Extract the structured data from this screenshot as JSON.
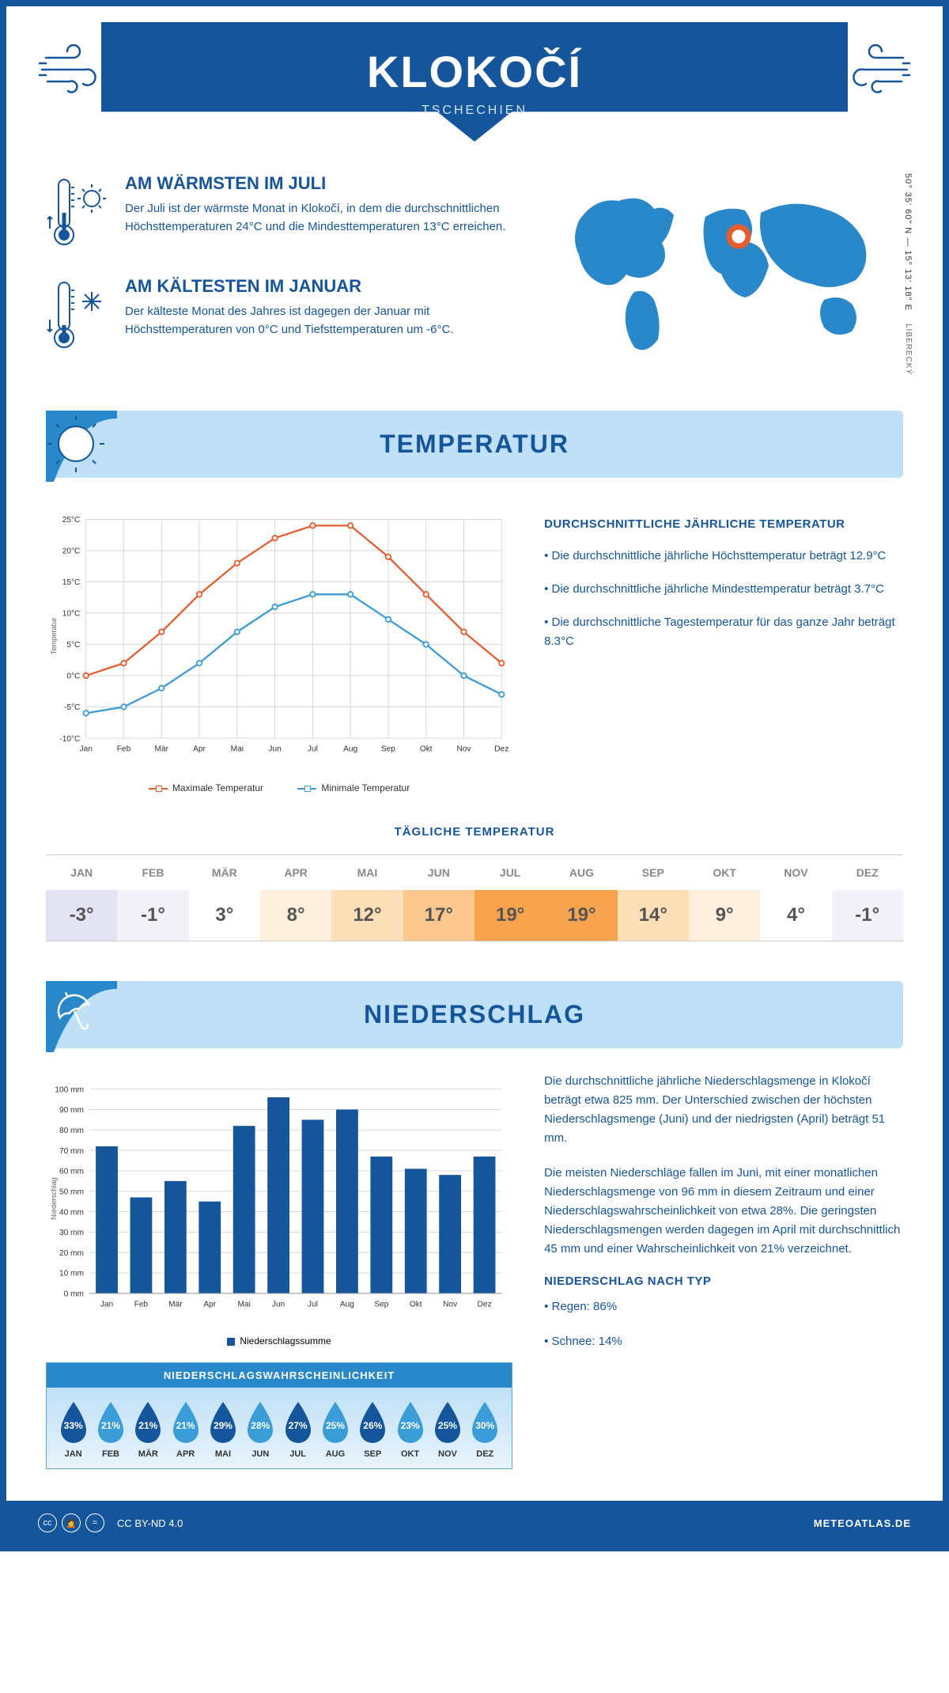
{
  "header": {
    "title": "KLOKOČÍ",
    "country": "TSCHECHIEN"
  },
  "coords": "50° 35' 60\" N — 15° 13' 18\" E",
  "region_label": "LIBERECKÝ",
  "facts": {
    "warm": {
      "title": "AM WÄRMSTEN IM JULI",
      "text": "Der Juli ist der wärmste Monat in Klokočí, in dem die durchschnittlichen Höchsttemperaturen 24°C und die Mindesttemperaturen 13°C erreichen."
    },
    "cold": {
      "title": "AM KÄLTESTEN IM JANUAR",
      "text": "Der kälteste Monat des Jahres ist dagegen der Januar mit Höchsttemperaturen von 0°C und Tiefsttemperaturen um -6°C."
    }
  },
  "temperature": {
    "section_title": "TEMPERATUR",
    "sidebar_title": "DURCHSCHNITTLICHE JÄHRLICHE TEMPERATUR",
    "bullets": [
      "• Die durchschnittliche jährliche Höchsttemperatur beträgt 12.9°C",
      "• Die durchschnittliche jährliche Mindesttemperatur beträgt 3.7°C",
      "• Die durchschnittliche Tagestemperatur für das ganze Jahr beträgt 8.3°C"
    ],
    "chart": {
      "type": "line",
      "months": [
        "Jan",
        "Feb",
        "Mär",
        "Apr",
        "Mai",
        "Jun",
        "Jul",
        "Aug",
        "Sep",
        "Okt",
        "Nov",
        "Dez"
      ],
      "max_values": [
        0,
        2,
        7,
        13,
        18,
        22,
        24,
        24,
        19,
        13,
        7,
        2
      ],
      "min_values": [
        -6,
        -5,
        -2,
        2,
        7,
        11,
        13,
        13,
        9,
        5,
        0,
        -3
      ],
      "max_color": "#e85d2e",
      "min_color": "#3b9dd8",
      "ylim": [
        -10,
        25
      ],
      "ytick_step": 5,
      "grid_color": "#d5d5d5",
      "y_label": "Temperatur",
      "legend_max": "Maximale Temperatur",
      "legend_min": "Minimale Temperatur"
    },
    "daily_title": "TÄGLICHE TEMPERATUR",
    "daily": {
      "months": [
        "JAN",
        "FEB",
        "MÄR",
        "APR",
        "MAI",
        "JUN",
        "JUL",
        "AUG",
        "SEP",
        "OKT",
        "NOV",
        "DEZ"
      ],
      "values": [
        "-3°",
        "-1°",
        "3°",
        "8°",
        "12°",
        "17°",
        "19°",
        "19°",
        "14°",
        "9°",
        "4°",
        "-1°"
      ],
      "colors": [
        "#e3e3f4",
        "#f2f2f8",
        "#ffffff",
        "#fef0dc",
        "#fde0b8",
        "#fbc78c",
        "#f7a24d",
        "#f7a24d",
        "#fde0b8",
        "#fef0dc",
        "#ffffff",
        "#f2f2f8"
      ]
    }
  },
  "precip": {
    "section_title": "NIEDERSCHLAG",
    "chart": {
      "type": "bar",
      "months": [
        "Jan",
        "Feb",
        "Mär",
        "Apr",
        "Mai",
        "Jun",
        "Jul",
        "Aug",
        "Sep",
        "Okt",
        "Nov",
        "Dez"
      ],
      "values": [
        72,
        47,
        55,
        45,
        82,
        96,
        85,
        90,
        67,
        61,
        58,
        67
      ],
      "bar_color": "#14559c",
      "ylim": [
        0,
        100
      ],
      "ytick_step": 10,
      "grid_color": "#d5d5d5",
      "y_label": "Niederschlag",
      "legend": "Niederschlagssumme"
    },
    "prob_title": "NIEDERSCHLAGSWAHRSCHEINLICHKEIT",
    "prob": {
      "months": [
        "JAN",
        "FEB",
        "MÄR",
        "APR",
        "MAI",
        "JUN",
        "JUL",
        "AUG",
        "SEP",
        "OKT",
        "NOV",
        "DEZ"
      ],
      "values": [
        "33%",
        "21%",
        "21%",
        "21%",
        "29%",
        "28%",
        "27%",
        "25%",
        "26%",
        "23%",
        "25%",
        "30%"
      ],
      "drop_color": "#14559c",
      "drop_alt_color": "#3b9dd8"
    },
    "para1": "Die durchschnittliche jährliche Niederschlagsmenge in Klokočí beträgt etwa 825 mm. Der Unterschied zwischen der höchsten Niederschlagsmenge (Juni) und der niedrigsten (April) beträgt 51 mm.",
    "para2": "Die meisten Niederschläge fallen im Juni, mit einer monatlichen Niederschlagsmenge von 96 mm in diesem Zeitraum und einer Niederschlagswahrscheinlichkeit von etwa 28%. Die geringsten Niederschlagsmengen werden dagegen im April mit durchschnittlich 45 mm und einer Wahrscheinlichkeit von 21% verzeichnet.",
    "type_title": "NIEDERSCHLAG NACH TYP",
    "type_bullets": [
      "• Regen: 86%",
      "• Schnee: 14%"
    ]
  },
  "footer": {
    "license": "CC BY-ND 4.0",
    "site": "METEOATLAS.DE"
  },
  "colors": {
    "primary": "#14559c",
    "light_blue": "#bfe0f7",
    "accent_blue": "#3b9dd8"
  }
}
